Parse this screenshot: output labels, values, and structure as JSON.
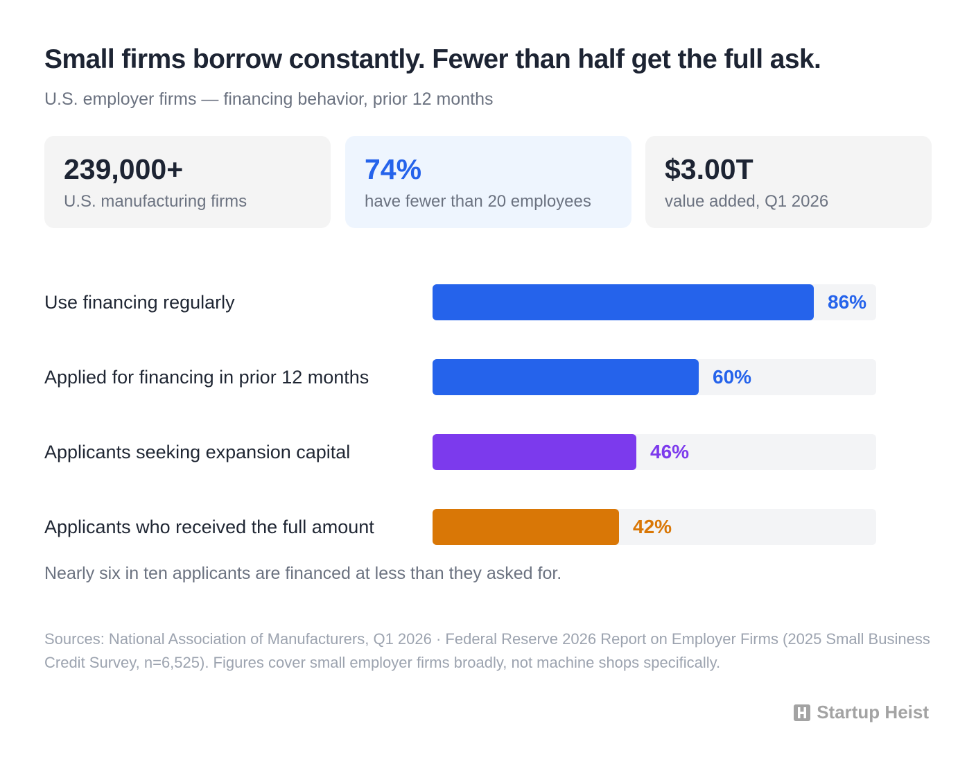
{
  "header": {
    "title": "Small firms borrow constantly. Fewer than half get the full ask.",
    "subtitle": "U.S. employer firms — financing behavior, prior 12 months"
  },
  "stats": [
    {
      "value": "239,000+",
      "label": "U.S. manufacturing firms"
    },
    {
      "value": "74%",
      "label": "have fewer than 20 employees"
    },
    {
      "value": "$3.00T",
      "label": "value added, Q1 2026"
    }
  ],
  "chart_data": {
    "type": "bar",
    "orientation": "horizontal",
    "categories": [
      "Use financing regularly",
      "Applied for financing in prior 12 months",
      "Applicants seeking expansion capital",
      "Applicants who received the full amount"
    ],
    "values": [
      86,
      60,
      46,
      42
    ],
    "value_labels": [
      "86%",
      "60%",
      "46%",
      "42%"
    ],
    "colors": [
      "#2563eb",
      "#2563eb",
      "#7c3aed",
      "#d97706"
    ],
    "xlim": [
      0,
      100
    ],
    "grid": false
  },
  "note": "Nearly six in ten applicants are financed at less than they asked for.",
  "sources": "Sources: National Association of Manufacturers, Q1 2026 · Federal Reserve 2026 Report on Employer Firms (2025 Small Business Credit Survey, n=6,525). Figures cover small employer firms broadly, not machine shops specifically.",
  "brand": {
    "name": "Startup Heist",
    "icon": "h-logo-icon"
  },
  "colors": {
    "track": "#f3f4f6",
    "highlight_card": "#eef5fe",
    "card": "#f4f4f4"
  }
}
